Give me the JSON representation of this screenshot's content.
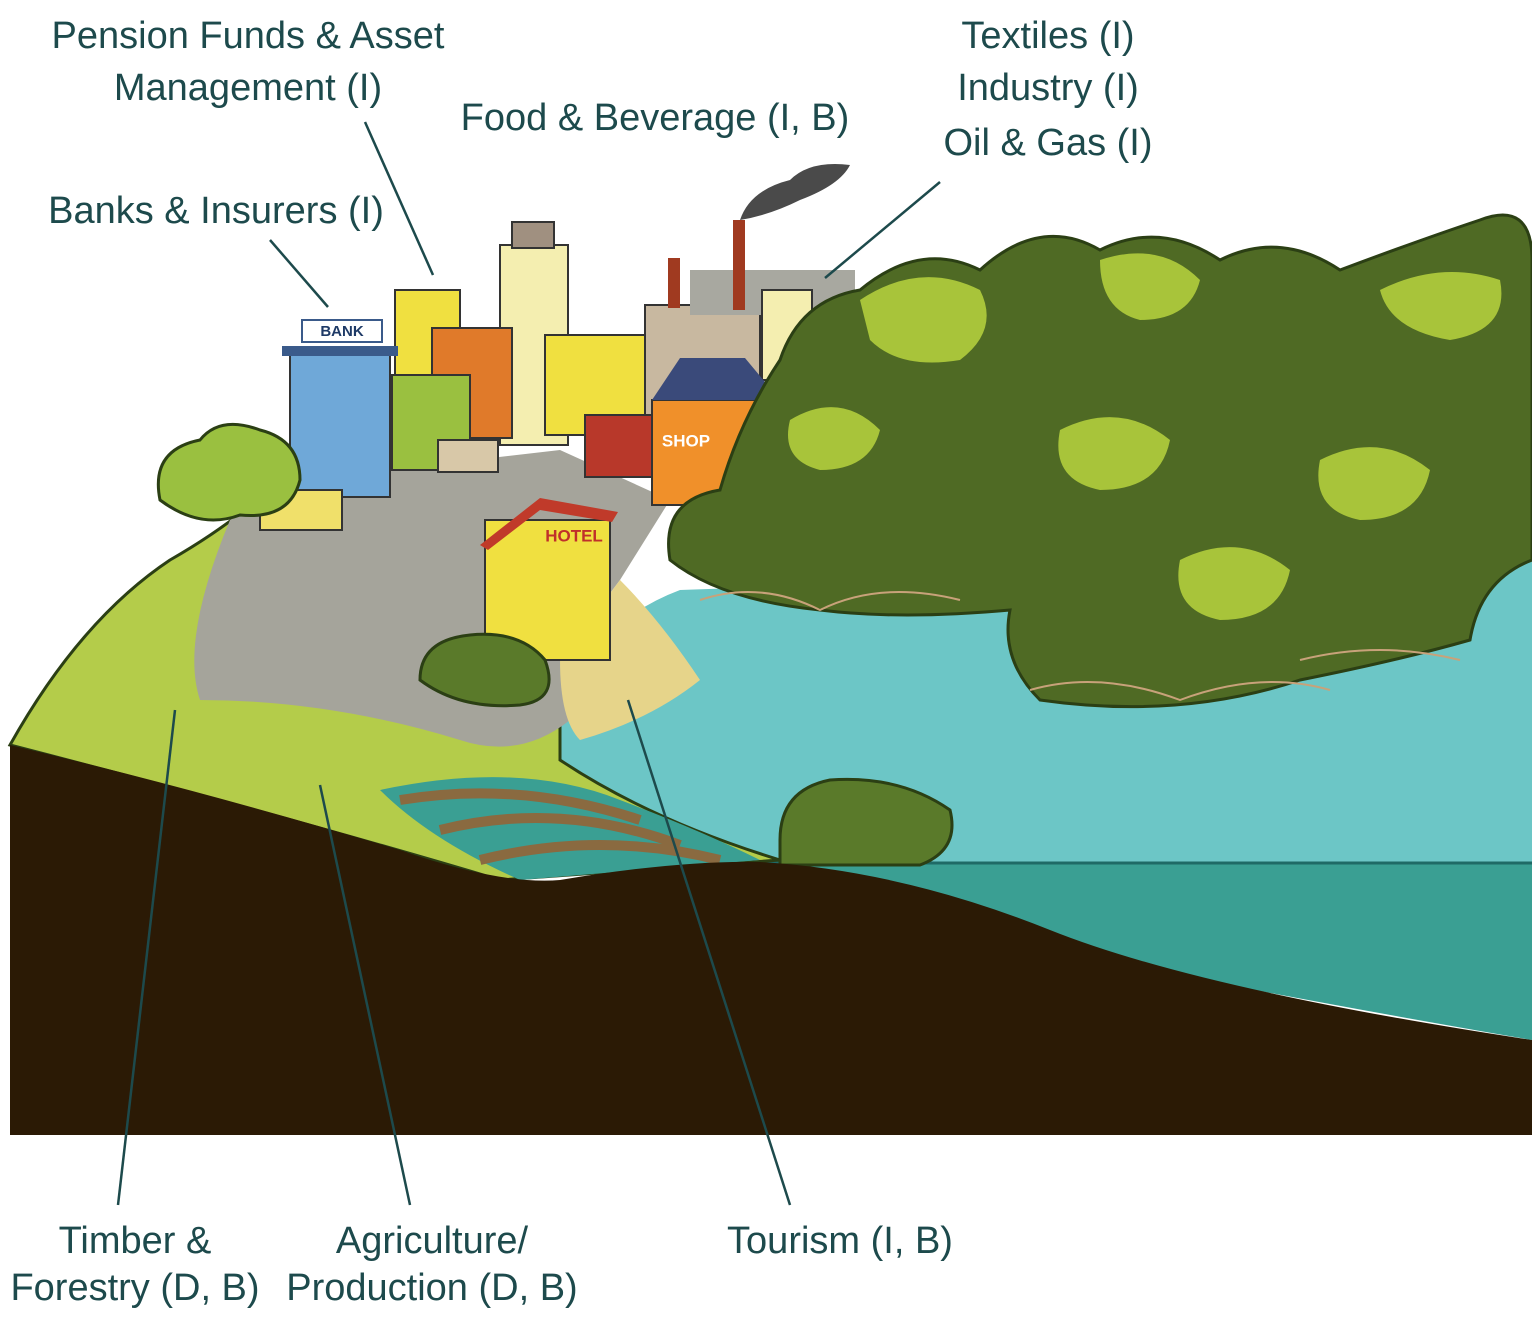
{
  "labels": [
    {
      "lines": [
        "Pension Funds & Asset",
        "Management (I)"
      ]
    },
    {
      "lines": [
        "Banks & Insurers (I)"
      ]
    },
    {
      "lines": [
        "Food & Beverage (I, B)"
      ]
    },
    {
      "lines": [
        "Textiles (I)",
        "Industry (I)",
        "Oil & Gas (I)"
      ]
    },
    {
      "lines": [
        "Timber &",
        "Forestry (D, B)"
      ]
    },
    {
      "lines": [
        "Agriculture/",
        "Production (D, B)"
      ]
    },
    {
      "lines": [
        "Tourism (I, B)"
      ]
    }
  ],
  "signs": {
    "bank": "BANK",
    "shop": "SHOP",
    "hotel": "HOTEL"
  }
}
